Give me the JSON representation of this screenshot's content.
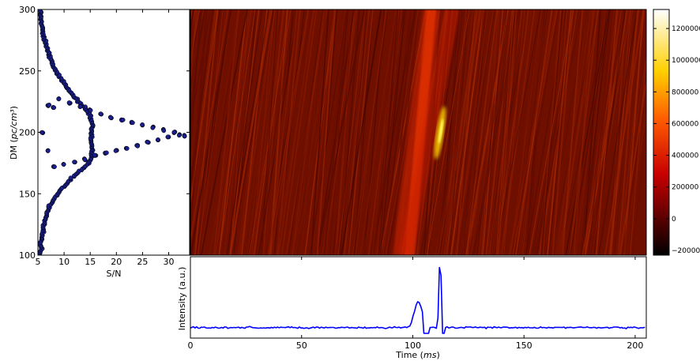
{
  "chart_data": [
    {
      "type": "scatter",
      "panel": "dm-vs-snr",
      "xlabel": "S/N",
      "ylabel": "DM",
      "ylabel_unit": "pc/cm³",
      "xlim": [
        5,
        34
      ],
      "ylim": [
        100,
        300
      ],
      "xticks": [
        5,
        10,
        15,
        20,
        25,
        30
      ],
      "yticks": [
        100,
        150,
        200,
        250,
        300
      ],
      "marker_color": "#1a1f8c",
      "grid": false,
      "points_description_x_by_dm": [
        [
          100,
          5.4
        ],
        [
          105,
          5.6
        ],
        [
          110,
          5.5
        ],
        [
          115,
          5.8
        ],
        [
          120,
          6
        ],
        [
          125,
          6.2
        ],
        [
          130,
          6.5
        ],
        [
          135,
          6.8
        ],
        [
          140,
          7.2
        ],
        [
          145,
          8
        ],
        [
          150,
          8.8
        ],
        [
          155,
          9.8
        ],
        [
          160,
          10.8
        ],
        [
          165,
          12
        ],
        [
          170,
          13.4
        ],
        [
          175,
          14.8
        ],
        [
          180,
          15.2
        ],
        [
          185,
          15.4
        ],
        [
          190,
          15.3
        ],
        [
          195,
          15.2
        ],
        [
          200,
          15.3
        ],
        [
          205,
          15.4
        ],
        [
          210,
          15.2
        ],
        [
          215,
          14.8
        ],
        [
          220,
          14
        ],
        [
          225,
          12.8
        ],
        [
          230,
          11.8
        ],
        [
          235,
          10.8
        ],
        [
          240,
          10
        ],
        [
          245,
          9.2
        ],
        [
          250,
          8.4
        ],
        [
          255,
          7.8
        ],
        [
          260,
          7.4
        ],
        [
          265,
          7
        ],
        [
          270,
          6.6
        ],
        [
          275,
          6.3
        ],
        [
          280,
          6
        ],
        [
          285,
          5.8
        ],
        [
          290,
          5.6
        ],
        [
          295,
          5.5
        ],
        [
          300,
          5.4
        ]
      ],
      "branch_points": [
        [
          8,
          172
        ],
        [
          10,
          174
        ],
        [
          12,
          176
        ],
        [
          14,
          178
        ],
        [
          16,
          181
        ],
        [
          18,
          183
        ],
        [
          20,
          185
        ],
        [
          22,
          187
        ],
        [
          24,
          189
        ],
        [
          26,
          192
        ],
        [
          28,
          194
        ],
        [
          30,
          196
        ],
        [
          32,
          198
        ],
        [
          33,
          197
        ],
        [
          31,
          200
        ],
        [
          29,
          202
        ],
        [
          27,
          204
        ],
        [
          25,
          206
        ],
        [
          23,
          208
        ],
        [
          21,
          210
        ],
        [
          19,
          212
        ],
        [
          17,
          215
        ],
        [
          15,
          218
        ],
        [
          13,
          221
        ],
        [
          11,
          224
        ],
        [
          9,
          227
        ],
        [
          7,
          222
        ],
        [
          6,
          200
        ],
        [
          7,
          185
        ],
        [
          8,
          220
        ]
      ]
    },
    {
      "type": "heatmap",
      "panel": "dm-vs-time",
      "colormap": "hot",
      "colorbar_ticks": [
        -200000,
        0,
        200000,
        400000,
        600000,
        800000,
        1000000,
        1200000
      ],
      "colorbar_labels": [
        "−200000",
        "0",
        "200000",
        "400000",
        "600000",
        "800000",
        "1000000",
        "1200000"
      ],
      "colorbar_range": [
        -230000,
        1320000
      ]
    },
    {
      "type": "line",
      "panel": "intensity-vs-time",
      "xlabel": "Time",
      "xlabel_unit": "ms",
      "ylabel": "Intensity (a.u.)",
      "xlim": [
        0,
        205
      ],
      "xticks": [
        0,
        50,
        100,
        150,
        200
      ],
      "line_color": "#0000ff",
      "baseline": 0.08,
      "noise": 0.025,
      "peaks": [
        {
          "t": 102.5,
          "height": 0.36,
          "width": 1.8
        },
        {
          "t": 112.3,
          "height": 1.0,
          "width": 0.5
        }
      ],
      "dip": {
        "t": 106,
        "value": 0.0
      }
    }
  ]
}
